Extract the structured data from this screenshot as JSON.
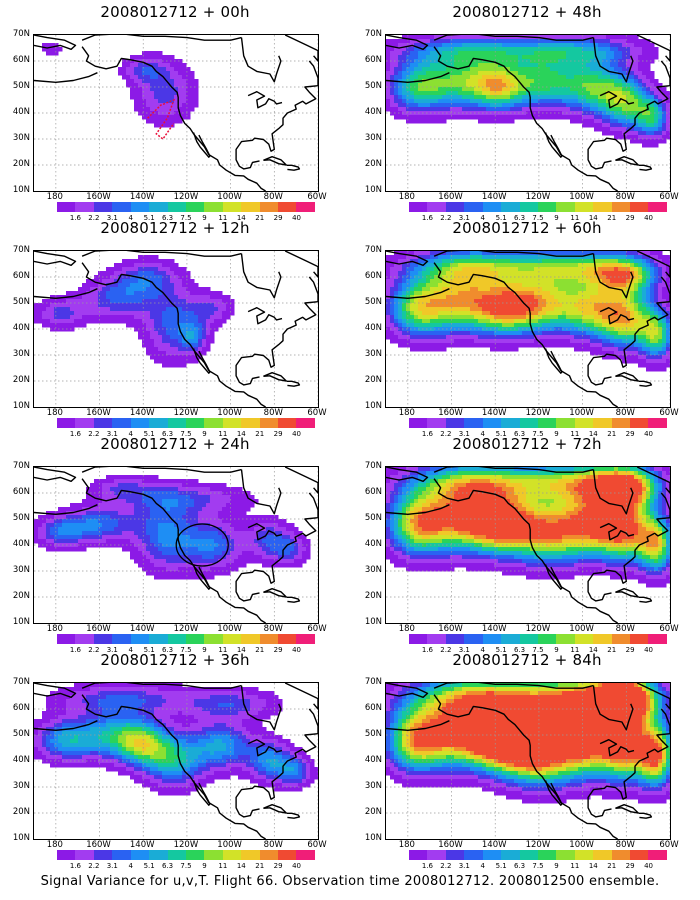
{
  "caption": "Signal Variance for u,v,T. Flight 66. Observation time 2008012712. 2008012500 ensemble.",
  "axes": {
    "lat_ticks": [
      "70N",
      "60N",
      "50N",
      "40N",
      "30N",
      "20N",
      "10N"
    ],
    "lon_ticks": [
      "180",
      "160W",
      "140W",
      "120W",
      "100W",
      "80W",
      "60W"
    ]
  },
  "colorbar": {
    "labels": [
      "1.6",
      "2.2",
      "3.1",
      "4",
      "5.1",
      "6.3",
      "7.5",
      "9",
      "11",
      "14",
      "21",
      "29",
      "40"
    ],
    "colors": [
      "#8c1ae6",
      "#a23cf0",
      "#4b37e6",
      "#2a62f2",
      "#1e8ef4",
      "#1aacd6",
      "#14c8a0",
      "#2ad35a",
      "#8ce032",
      "#d2e228",
      "#f0c828",
      "#f08c2d",
      "#f04a32",
      "#f01e78"
    ]
  },
  "panels": [
    {
      "id": "p00",
      "title": "2008012712 + 00h",
      "lead": "00h",
      "intensity": 0.05,
      "circle": false,
      "flight_track": true
    },
    {
      "id": "p12",
      "title": "2008012712 + 12h",
      "lead": "12h",
      "intensity": 0.25,
      "circle": false,
      "flight_track": false
    },
    {
      "id": "p24",
      "title": "2008012712 + 24h",
      "lead": "24h",
      "intensity": 0.35,
      "circle": true,
      "flight_track": false
    },
    {
      "id": "p36",
      "title": "2008012712 + 36h",
      "lead": "36h",
      "intensity": 0.45,
      "circle": false,
      "flight_track": false
    },
    {
      "id": "p48",
      "title": "2008012712 + 48h",
      "lead": "48h",
      "intensity": 0.55,
      "circle": false,
      "flight_track": false
    },
    {
      "id": "p60",
      "title": "2008012712 + 60h",
      "lead": "60h",
      "intensity": 0.68,
      "circle": false,
      "flight_track": false
    },
    {
      "id": "p72",
      "title": "2008012712 + 72h",
      "lead": "72h",
      "intensity": 0.78,
      "circle": false,
      "flight_track": false
    },
    {
      "id": "p84",
      "title": "2008012712 + 84h",
      "lead": "84h",
      "intensity": 0.88,
      "circle": false,
      "flight_track": false
    }
  ]
}
